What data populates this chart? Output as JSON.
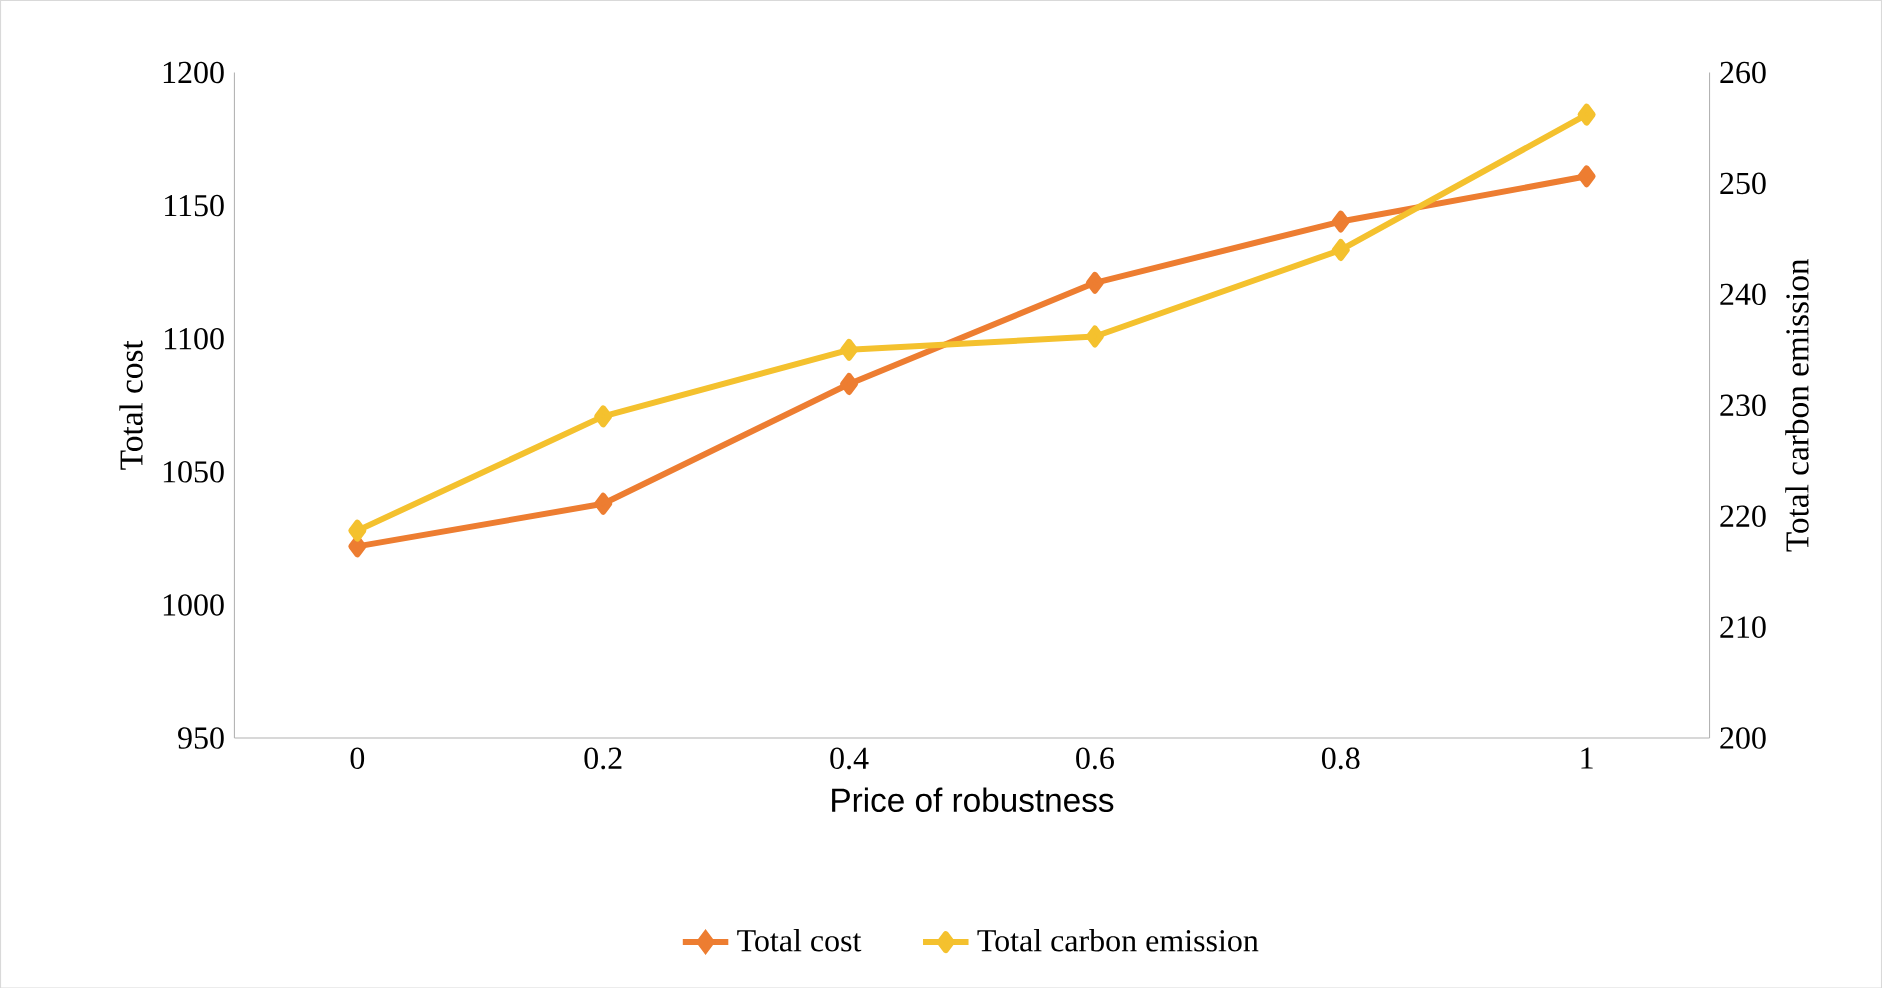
{
  "chart_data": {
    "type": "line",
    "xlabel": "Price of robustness",
    "ylabel": "Total cost",
    "y2label": "Total carbon emission",
    "categories": [
      "0",
      "0.2",
      "0.4",
      "0.6",
      "0.8",
      "1"
    ],
    "series": [
      {
        "name": "Total cost",
        "color": "#ed7d31",
        "values": [
          1022,
          1038,
          1083,
          1121,
          1144,
          1161
        ]
      },
      {
        "name": "Total carbon emission",
        "color": "#f4c12e",
        "axis": "y2",
        "values": [
          218.7,
          229,
          235,
          236.2,
          244,
          256.2
        ]
      }
    ],
    "ylim": [
      950,
      1200
    ],
    "yticks": [
      950,
      1000,
      1050,
      1100,
      1150,
      1200
    ],
    "y2lim": [
      200,
      260
    ],
    "y2ticks": [
      200,
      210,
      220,
      230,
      240,
      250,
      260
    ],
    "marker": "diamond",
    "line_style": "solid",
    "legend": "bottom",
    "grid": false
  }
}
